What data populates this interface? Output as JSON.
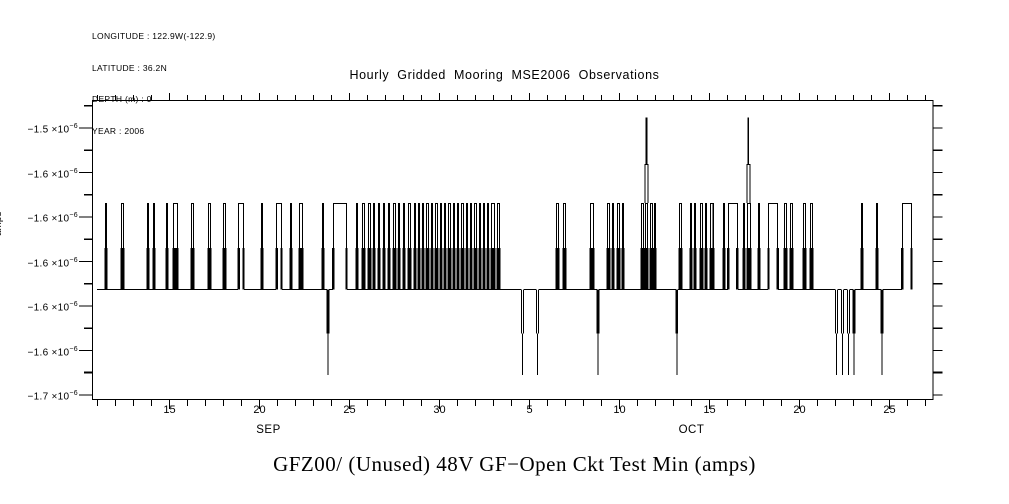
{
  "meta": {
    "lines": [
      "LONGITUDE : 122.9W(-122.9)",
      "LATITUDE : 36.2N",
      "DEPTH (m) : 0",
      "YEAR : 2006"
    ]
  },
  "title": "Hourly Gridded Mooring MSE2006 Observations",
  "bottom_title": "GFZ00/ (Unused) 48V GF−Open Ckt Test Min (amps)",
  "y_axis_unit_label": "amps",
  "colors": {
    "foreground": "#000000",
    "background": "#ffffff"
  },
  "chart_data": {
    "type": "line",
    "title": "Hourly Gridded Mooring MSE2006 Observations",
    "ylabel": "amps",
    "grid": false,
    "legend": "none",
    "ylim": [
      -1.704e-06,
      -1.479e-06
    ],
    "x_range_days_since_sep0": [
      10.7,
      57.4
    ],
    "y_tick_labels": [
      {
        "m": "−1.5",
        "base": "×10",
        "e": "−6"
      },
      {
        "m": "−1.6",
        "base": "×10",
        "e": "−6"
      },
      {
        "m": "−1.6",
        "base": "×10",
        "e": "−6"
      },
      {
        "m": "−1.6",
        "base": "×10",
        "e": "−6"
      },
      {
        "m": "−1.6",
        "base": "×10",
        "e": "−6"
      },
      {
        "m": "−1.6",
        "base": "×10",
        "e": "−6"
      },
      {
        "m": "−1.7",
        "base": "×10",
        "e": "−6"
      }
    ],
    "x_tick_labels": [
      {
        "day": 15,
        "label": "15"
      },
      {
        "day": 20,
        "label": "20"
      },
      {
        "day": 25,
        "label": "25"
      },
      {
        "day": 30,
        "label": "30"
      },
      {
        "day": 35,
        "label": "5"
      },
      {
        "day": 40,
        "label": "10"
      },
      {
        "day": 45,
        "label": "15"
      },
      {
        "day": 50,
        "label": "20"
      },
      {
        "day": 55,
        "label": "25"
      }
    ],
    "month_labels": [
      {
        "day": 20.5,
        "label": "SEP"
      },
      {
        "day": 44.0,
        "label": "OCT"
      }
    ],
    "levels_amps": {
      "base": -1.621e-06,
      "top": -1.556e-06,
      "shoulder_high": -1.59e-06,
      "shoulder_low": -1.654e-06,
      "deep": -1.685e-06,
      "spike_mid": -1.527e-06,
      "spike_peak": -1.492e-06
    },
    "trace_start_day": 10.97,
    "trace_end_day": 56.25,
    "pulses_up": [
      [
        11.41,
        0.11
      ],
      [
        12.3,
        0.17
      ],
      [
        13.75,
        0.11
      ],
      [
        14.08,
        0.11
      ],
      [
        14.8,
        0.11
      ],
      [
        15.19,
        0.28
      ],
      [
        16.19,
        0.17
      ],
      [
        17.14,
        0.17
      ],
      [
        17.97,
        0.17
      ],
      [
        18.81,
        0.33
      ],
      [
        20.08,
        0.11
      ],
      [
        20.92,
        0.33
      ],
      [
        21.69,
        0.11
      ],
      [
        22.19,
        0.22
      ],
      [
        23.47,
        0.11
      ],
      [
        24.08,
        0.78
      ],
      [
        25.36,
        0.11
      ],
      [
        25.69,
        0.17
      ],
      [
        26.03,
        0.17
      ],
      [
        26.3,
        0.11
      ],
      [
        26.58,
        0.11
      ],
      [
        26.86,
        0.11
      ],
      [
        27.13,
        0.11
      ],
      [
        27.41,
        0.17
      ],
      [
        27.69,
        0.11
      ],
      [
        27.97,
        0.11
      ],
      [
        28.25,
        0.17
      ],
      [
        28.58,
        0.11
      ],
      [
        28.8,
        0.11
      ],
      [
        29.03,
        0.11
      ],
      [
        29.25,
        0.17
      ],
      [
        29.52,
        0.11
      ],
      [
        29.75,
        0.17
      ],
      [
        30.02,
        0.11
      ],
      [
        30.25,
        0.11
      ],
      [
        30.47,
        0.17
      ],
      [
        30.75,
        0.11
      ],
      [
        30.97,
        0.11
      ],
      [
        31.19,
        0.17
      ],
      [
        31.47,
        0.11
      ],
      [
        31.69,
        0.11
      ],
      [
        31.91,
        0.17
      ],
      [
        32.19,
        0.11
      ],
      [
        32.41,
        0.11
      ],
      [
        32.63,
        0.11
      ],
      [
        32.86,
        0.22
      ],
      [
        33.19,
        0.17
      ],
      [
        36.47,
        0.17
      ],
      [
        36.86,
        0.17
      ],
      [
        38.36,
        0.22
      ],
      [
        39.3,
        0.17
      ],
      [
        39.58,
        0.11
      ],
      [
        39.86,
        0.17
      ],
      [
        40.13,
        0.11
      ],
      [
        41.19,
        0.17
      ],
      [
        41.41,
        0.17
      ],
      [
        41.69,
        0.17
      ],
      [
        41.92,
        0.11
      ],
      [
        43.3,
        0.17
      ],
      [
        43.91,
        0.11
      ],
      [
        44.14,
        0.11
      ],
      [
        44.47,
        0.17
      ],
      [
        44.75,
        0.11
      ],
      [
        45.02,
        0.22
      ],
      [
        45.75,
        0.11
      ],
      [
        46.02,
        0.56
      ],
      [
        46.86,
        0.11
      ],
      [
        47.08,
        0.22
      ],
      [
        47.69,
        0.11
      ],
      [
        48.25,
        0.56
      ],
      [
        49.13,
        0.17
      ],
      [
        49.47,
        0.17
      ],
      [
        50.19,
        0.17
      ],
      [
        50.58,
        0.17
      ],
      [
        53.41,
        0.11
      ],
      [
        54.25,
        0.11
      ],
      [
        55.69,
        0.56
      ]
    ],
    "pulses_down": [
      [
        23.75,
        0.11
      ],
      [
        34.52,
        0.17
      ],
      [
        35.36,
        0.17
      ],
      [
        38.75,
        0.11
      ],
      [
        43.13,
        0.11
      ],
      [
        51.97,
        0.17
      ],
      [
        52.3,
        0.17
      ],
      [
        52.63,
        0.17
      ],
      [
        52.97,
        0.11
      ],
      [
        54.52,
        0.11
      ]
    ],
    "spikes": [
      {
        "day": 41.5
      },
      {
        "day": 47.16
      }
    ]
  }
}
